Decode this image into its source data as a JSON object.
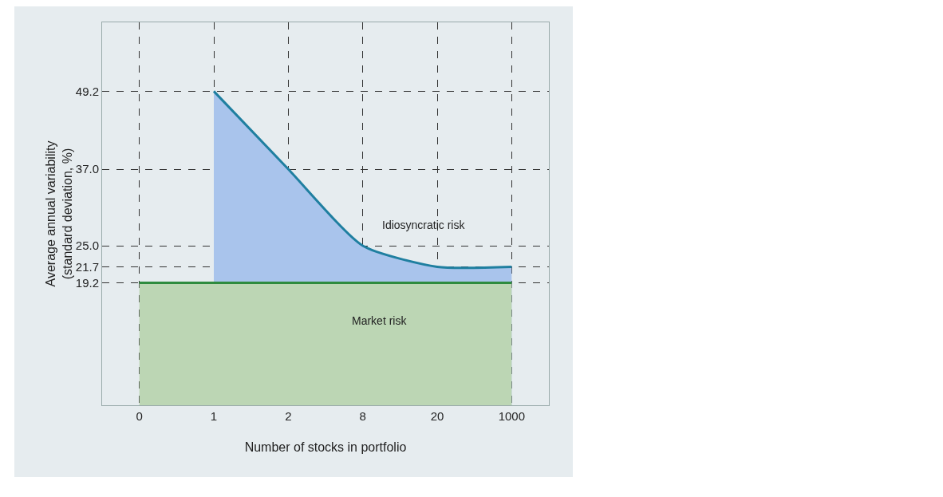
{
  "chart_data": {
    "type": "area",
    "xlabel": "Number of stocks in portfolio",
    "ylabel": "Average annual variability\n(standard deviation, %)",
    "categories": [
      "0",
      "1",
      "2",
      "8",
      "20",
      "1000"
    ],
    "series": [
      {
        "color": "#1f7fa0",
        "values": [
          null,
          49.2,
          37.0,
          25.0,
          21.7,
          21.7
        ]
      },
      {
        "color": "#2e8b3e",
        "values": [
          19.2,
          19.2,
          19.2,
          19.2,
          19.2,
          19.2
        ]
      }
    ],
    "ylim": [
      0,
      60
    ],
    "yticks": [
      19.2,
      21.7,
      {
        "value": 25,
        "label": "25.0"
      },
      {
        "value": 37,
        "label": "37.0"
      },
      49.2
    ],
    "grid": true,
    "annotations": [
      "Idiosyncratic risk",
      "Market risk"
    ]
  }
}
